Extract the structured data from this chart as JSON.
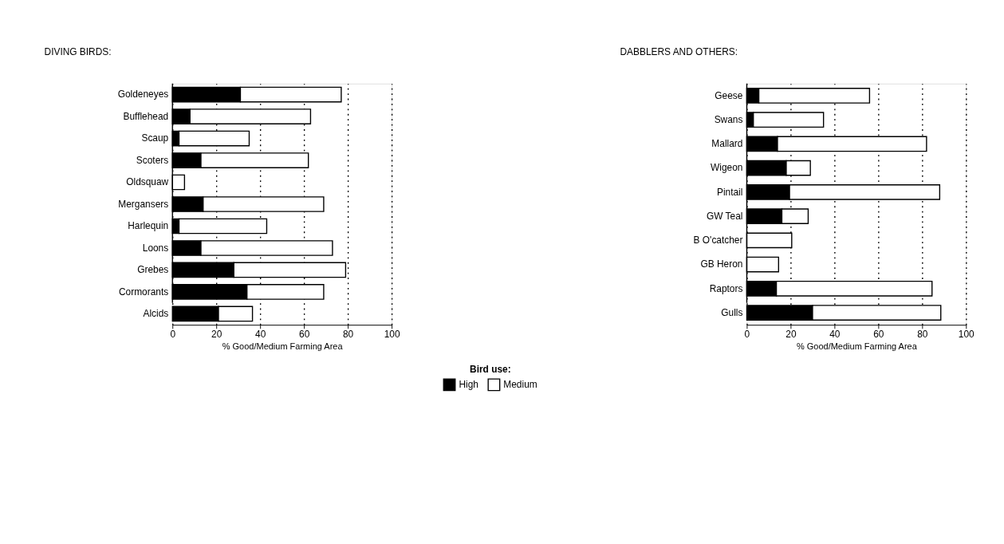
{
  "chart_data": [
    {
      "type": "bar",
      "title": "DIVING BIRDS:",
      "xlabel": "% Good/Medium Farming Area",
      "legend_title": "Bird use:",
      "orientation": "horizontal",
      "stacked": true,
      "grid": "x",
      "legend": "bottom",
      "categories": [
        "Goldeneyes",
        "Bufflehead",
        "Scaup",
        "Scoters",
        "Oldsquaw",
        "Mergansers",
        "Harlequin",
        "Loons",
        "Grebes",
        "Cormorants",
        "Alcids"
      ],
      "xlim": [
        0,
        100
      ],
      "xticks": [
        0,
        20,
        40,
        60,
        80,
        100
      ],
      "series": [
        {
          "name": "High",
          "color": "#000000",
          "values": [
            31,
            8,
            3,
            13,
            null,
            14,
            3,
            13,
            28,
            34,
            21
          ]
        },
        {
          "name": "Medium",
          "color": "#ffffff",
          "values": [
            46,
            55,
            32,
            49,
            5.5,
            55,
            40,
            60,
            51,
            35,
            15.5
          ]
        }
      ]
    },
    {
      "type": "bar",
      "title": "DABBLERS AND OTHERS:",
      "xlabel": "% Good/Medium Farming Area",
      "orientation": "horizontal",
      "stacked": true,
      "grid": "x",
      "categories": [
        "Geese",
        "Swans",
        "Mallard",
        "Wigeon",
        "Pintail",
        "GW Teal",
        "B O'catcher",
        "GB Heron",
        "Raptors",
        "Gulls"
      ],
      "xlim": [
        0,
        100
      ],
      "xticks": [
        0,
        20,
        40,
        60,
        80,
        100
      ],
      "series": [
        {
          "color": "#000000",
          "values": [
            5.5,
            3,
            14,
            18,
            19.5,
            16,
            null,
            null,
            13.5,
            30
          ]
        },
        {
          "color": "#ffffff",
          "values": [
            50.5,
            32,
            68,
            11,
            68.5,
            12,
            20.5,
            14.5,
            71,
            58.5
          ]
        }
      ]
    }
  ]
}
